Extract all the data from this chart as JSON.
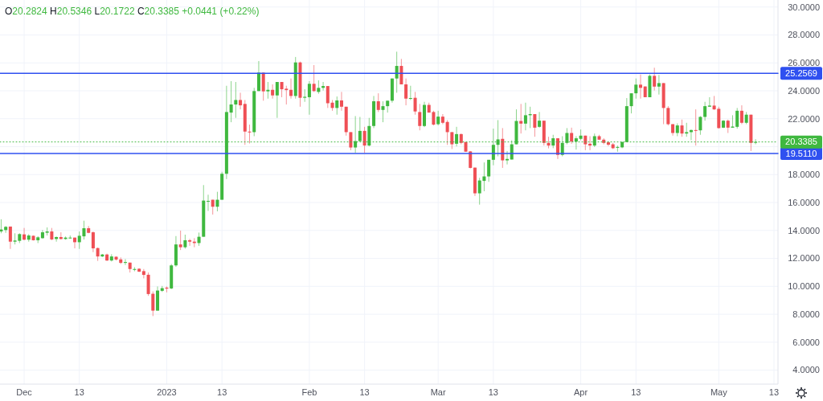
{
  "chart_data": {
    "type": "candlestick",
    "annotations": [
      "O20.2824 H20.5346 L20.1722 C20.3385 +0.0441 (+0.22%)"
    ],
    "x": [
      "2022-11-26",
      "2022-11-27",
      "2022-11-28",
      "2022-11-29",
      "2022-11-30",
      "2022-12-01",
      "2022-12-02",
      "2022-12-03",
      "2022-12-04",
      "2022-12-05",
      "2022-12-06",
      "2022-12-07",
      "2022-12-08",
      "2022-12-09",
      "2022-12-10",
      "2022-12-11",
      "2022-12-12",
      "2022-12-13",
      "2022-12-14",
      "2022-12-15",
      "2022-12-16",
      "2022-12-17",
      "2022-12-18",
      "2022-12-19",
      "2022-12-20",
      "2022-12-21",
      "2022-12-22",
      "2022-12-23",
      "2022-12-24",
      "2022-12-25",
      "2022-12-26",
      "2022-12-27",
      "2022-12-28",
      "2022-12-29",
      "2022-12-30",
      "2022-12-31",
      "2023-01-01",
      "2023-01-02",
      "2023-01-03",
      "2023-01-04",
      "2023-01-05",
      "2023-01-06",
      "2023-01-07",
      "2023-01-08",
      "2023-01-09",
      "2023-01-10",
      "2023-01-11",
      "2023-01-12",
      "2023-01-13",
      "2023-01-14",
      "2023-01-15",
      "2023-01-16",
      "2023-01-17",
      "2023-01-18",
      "2023-01-19",
      "2023-01-20",
      "2023-01-21",
      "2023-01-22",
      "2023-01-23",
      "2023-01-24",
      "2023-01-25",
      "2023-01-26",
      "2023-01-27",
      "2023-01-28",
      "2023-01-29",
      "2023-01-30",
      "2023-01-31",
      "2023-02-01",
      "2023-02-02",
      "2023-02-03",
      "2023-02-04",
      "2023-02-05",
      "2023-02-06",
      "2023-02-07",
      "2023-02-08",
      "2023-02-09",
      "2023-02-10",
      "2023-02-11",
      "2023-02-12",
      "2023-02-13",
      "2023-02-14",
      "2023-02-15",
      "2023-02-16",
      "2023-02-17",
      "2023-02-18",
      "2023-02-19",
      "2023-02-20",
      "2023-02-21",
      "2023-02-22",
      "2023-02-23",
      "2023-02-24",
      "2023-02-25",
      "2023-02-26",
      "2023-02-27",
      "2023-02-28",
      "2023-03-01",
      "2023-03-02",
      "2023-03-03",
      "2023-03-04",
      "2023-03-05",
      "2023-03-06",
      "2023-03-07",
      "2023-03-08",
      "2023-03-09",
      "2023-03-10",
      "2023-03-11",
      "2023-03-12",
      "2023-03-13",
      "2023-03-14",
      "2023-03-15",
      "2023-03-16",
      "2023-03-17",
      "2023-03-18",
      "2023-03-19",
      "2023-03-20",
      "2023-03-21",
      "2023-03-22",
      "2023-03-23",
      "2023-03-24",
      "2023-03-25",
      "2023-03-26",
      "2023-03-27",
      "2023-03-28",
      "2023-03-29",
      "2023-03-30",
      "2023-03-31",
      "2023-04-01",
      "2023-04-02",
      "2023-04-03",
      "2023-04-04",
      "2023-04-05",
      "2023-04-06",
      "2023-04-07",
      "2023-04-08",
      "2023-04-09",
      "2023-04-10",
      "2023-04-11",
      "2023-04-12",
      "2023-04-13",
      "2023-04-14",
      "2023-04-15",
      "2023-04-16",
      "2023-04-17",
      "2023-04-18",
      "2023-04-19",
      "2023-04-20",
      "2023-04-21",
      "2023-04-22",
      "2023-04-23",
      "2023-04-24",
      "2023-04-25",
      "2023-04-26",
      "2023-04-27",
      "2023-04-28",
      "2023-04-29",
      "2023-04-30",
      "2023-05-01",
      "2023-05-02",
      "2023-05-03",
      "2023-05-04",
      "2023-05-05",
      "2023-05-06",
      "2023-05-07",
      "2023-05-08",
      "2023-05-09"
    ],
    "ohlc": [
      [
        13.93,
        14.8,
        13.8,
        14.07
      ],
      [
        14.03,
        14.32,
        13.83,
        14.26
      ],
      [
        14.28,
        14.28,
        12.68,
        13.2
      ],
      [
        13.2,
        13.8,
        13.0,
        13.28
      ],
      [
        13.26,
        13.8,
        13.1,
        13.74
      ],
      [
        13.72,
        14.18,
        13.3,
        13.34
      ],
      [
        13.34,
        13.74,
        13.2,
        13.64
      ],
      [
        13.62,
        13.64,
        13.28,
        13.3
      ],
      [
        13.3,
        13.59,
        13.1,
        13.51
      ],
      [
        13.45,
        14.03,
        13.41,
        13.87
      ],
      [
        13.84,
        14.22,
        13.64,
        13.93
      ],
      [
        13.93,
        14.18,
        13.3,
        13.36
      ],
      [
        13.39,
        13.57,
        13.2,
        13.53
      ],
      [
        13.53,
        13.87,
        13.35,
        13.39
      ],
      [
        13.39,
        13.57,
        13.34,
        13.49
      ],
      [
        13.45,
        13.64,
        13.41,
        13.49
      ],
      [
        13.49,
        13.49,
        12.72,
        13.16
      ],
      [
        13.16,
        13.93,
        12.68,
        13.62
      ],
      [
        13.58,
        14.7,
        13.35,
        14.16
      ],
      [
        14.16,
        14.32,
        13.8,
        13.83
      ],
      [
        13.87,
        13.93,
        12.45,
        12.72
      ],
      [
        12.74,
        12.78,
        11.82,
        12.14
      ],
      [
        12.14,
        12.32,
        12.1,
        12.28
      ],
      [
        12.28,
        12.34,
        11.82,
        11.85
      ],
      [
        11.85,
        12.3,
        11.78,
        12.14
      ],
      [
        12.12,
        12.14,
        11.85,
        11.92
      ],
      [
        11.93,
        12.07,
        11.6,
        11.68
      ],
      [
        11.68,
        11.95,
        11.53,
        11.74
      ],
      [
        11.7,
        11.7,
        10.99,
        11.24
      ],
      [
        11.18,
        11.37,
        11.08,
        11.24
      ],
      [
        11.26,
        11.3,
        11.03,
        11.05
      ],
      [
        11.09,
        11.24,
        10.57,
        10.82
      ],
      [
        10.83,
        10.99,
        9.32,
        9.45
      ],
      [
        9.47,
        9.64,
        7.87,
        8.26
      ],
      [
        8.26,
        9.99,
        8.26,
        9.7
      ],
      [
        9.68,
        10.03,
        9.6,
        9.87
      ],
      [
        9.91,
        9.99,
        9.57,
        9.84
      ],
      [
        9.85,
        11.6,
        9.8,
        11.5
      ],
      [
        11.5,
        13.6,
        11.4,
        13.0
      ],
      [
        13.0,
        13.99,
        12.6,
        12.8
      ],
      [
        12.8,
        13.7,
        12.7,
        13.3
      ],
      [
        13.3,
        13.4,
        12.9,
        13.2
      ],
      [
        13.2,
        13.45,
        12.8,
        13.1
      ],
      [
        13.1,
        13.85,
        12.9,
        13.55
      ],
      [
        13.55,
        17.25,
        13.55,
        16.14
      ],
      [
        16.1,
        16.56,
        15.4,
        16.12
      ],
      [
        16.2,
        16.2,
        15.14,
        15.7
      ],
      [
        15.7,
        16.77,
        15.37,
        16.2
      ],
      [
        16.2,
        18.2,
        16.2,
        18.06
      ],
      [
        18.06,
        24.36,
        17.68,
        22.48
      ],
      [
        22.44,
        24.69,
        21.75,
        23.02
      ],
      [
        23.02,
        24.63,
        22.06,
        23.34
      ],
      [
        23.34,
        23.86,
        22.67,
        22.96
      ],
      [
        23.06,
        23.34,
        20.13,
        21.08
      ],
      [
        21.08,
        21.58,
        20.23,
        21.02
      ],
      [
        21.04,
        24.21,
        20.75,
        23.98
      ],
      [
        23.98,
        26.13,
        23.98,
        25.3
      ],
      [
        25.3,
        25.3,
        23.29,
        23.96
      ],
      [
        23.96,
        24.63,
        23.44,
        24.07
      ],
      [
        24.07,
        24.46,
        23.44,
        23.67
      ],
      [
        23.67,
        24.63,
        22.06,
        24.63
      ],
      [
        24.63,
        24.63,
        23.54,
        24.11
      ],
      [
        24.15,
        24.36,
        23.02,
        24.05
      ],
      [
        24.07,
        24.88,
        23.44,
        23.63
      ],
      [
        23.63,
        26.42,
        23.44,
        26.03
      ],
      [
        26.03,
        26.09,
        22.86,
        23.5
      ],
      [
        23.5,
        24.11,
        23.21,
        23.57
      ],
      [
        23.54,
        24.69,
        22.29,
        24.5
      ],
      [
        24.5,
        25.84,
        23.92,
        23.98
      ],
      [
        23.92,
        24.75,
        23.79,
        24.21
      ],
      [
        24.21,
        24.63,
        24.02,
        24.34
      ],
      [
        24.34,
        24.34,
        22.77,
        23.11
      ],
      [
        23.15,
        23.34,
        22.57,
        22.77
      ],
      [
        22.77,
        23.59,
        22.29,
        23.31
      ],
      [
        23.31,
        23.92,
        22.57,
        22.86
      ],
      [
        22.86,
        22.86,
        20.79,
        21.04
      ],
      [
        21.04,
        21.04,
        19.75,
        19.94
      ],
      [
        19.94,
        22.19,
        19.56,
        20.4
      ],
      [
        20.4,
        22.13,
        20.33,
        21.13
      ],
      [
        21.13,
        21.42,
        19.56,
        20.08
      ],
      [
        20.08,
        22.06,
        20.02,
        21.48
      ],
      [
        21.48,
        23.63,
        21.33,
        23.25
      ],
      [
        23.25,
        23.82,
        22.48,
        22.63
      ],
      [
        22.63,
        23.25,
        21.75,
        22.9
      ],
      [
        22.9,
        23.29,
        22.44,
        23.29
      ],
      [
        23.29,
        24.88,
        23.15,
        24.88
      ],
      [
        24.88,
        26.8,
        23.86,
        25.78
      ],
      [
        25.78,
        26.28,
        24.46,
        24.46
      ],
      [
        24.46,
        24.88,
        22.96,
        23.44
      ],
      [
        23.44,
        24.36,
        23.34,
        23.48
      ],
      [
        23.5,
        23.92,
        22.29,
        22.52
      ],
      [
        22.48,
        23.06,
        21.17,
        21.48
      ],
      [
        21.48,
        23.21,
        21.4,
        22.99
      ],
      [
        22.99,
        23.15,
        22.44,
        22.44
      ],
      [
        22.48,
        22.57,
        21.52,
        21.58
      ],
      [
        21.61,
        22.57,
        21.52,
        22.15
      ],
      [
        22.15,
        22.33,
        21.61,
        21.71
      ],
      [
        21.77,
        21.9,
        20.13,
        21.04
      ],
      [
        21.04,
        21.04,
        19.83,
        20.17
      ],
      [
        20.21,
        21.42,
        20.02,
        20.9
      ],
      [
        20.9,
        20.94,
        20.17,
        20.27
      ],
      [
        20.33,
        20.33,
        19.64,
        19.64
      ],
      [
        19.66,
        19.69,
        18.44,
        18.48
      ],
      [
        18.5,
        18.5,
        16.47,
        16.66
      ],
      [
        16.66,
        17.77,
        15.85,
        17.58
      ],
      [
        17.55,
        18.87,
        16.81,
        17.87
      ],
      [
        17.87,
        19.06,
        17.48,
        19.06
      ],
      [
        19.06,
        21.29,
        18.67,
        20.13
      ],
      [
        20.13,
        21.9,
        19.31,
        20.52
      ],
      [
        20.56,
        21.33,
        18.48,
        19.02
      ],
      [
        19.02,
        19.69,
        18.73,
        19.12
      ],
      [
        19.08,
        20.46,
        19.08,
        20.17
      ],
      [
        20.17,
        22.67,
        20.17,
        21.84
      ],
      [
        21.84,
        23.06,
        20.94,
        21.65
      ],
      [
        21.65,
        23.15,
        21.17,
        22.25
      ],
      [
        22.25,
        22.86,
        21.33,
        22.33
      ],
      [
        22.33,
        22.33,
        20.71,
        21.36
      ],
      [
        21.42,
        22.48,
        21.36,
        21.86
      ],
      [
        21.86,
        21.86,
        20.08,
        20.27
      ],
      [
        20.27,
        20.71,
        19.88,
        20.08
      ],
      [
        20.08,
        20.85,
        19.89,
        20.6
      ],
      [
        20.6,
        20.6,
        19.12,
        19.41
      ],
      [
        19.41,
        20.75,
        19.31,
        20.27
      ],
      [
        20.27,
        21.33,
        20.17,
        20.98
      ],
      [
        20.98,
        21.36,
        20.21,
        20.37
      ],
      [
        20.37,
        20.75,
        19.79,
        20.6
      ],
      [
        20.56,
        21.23,
        20.46,
        20.79
      ],
      [
        20.79,
        20.79,
        19.75,
        20.17
      ],
      [
        20.21,
        20.75,
        19.75,
        20.08
      ],
      [
        20.08,
        20.94,
        19.98,
        20.75
      ],
      [
        20.75,
        20.85,
        20.5,
        20.5
      ],
      [
        20.5,
        20.6,
        20.17,
        20.27
      ],
      [
        20.31,
        20.4,
        20.04,
        20.14
      ],
      [
        20.17,
        20.27,
        19.83,
        19.89
      ],
      [
        19.92,
        20.08,
        19.64,
        19.98
      ],
      [
        19.95,
        20.37,
        19.89,
        20.33
      ],
      [
        20.33,
        23.48,
        20.33,
        22.9
      ],
      [
        22.9,
        23.82,
        22.38,
        23.82
      ],
      [
        23.82,
        24.88,
        23.44,
        24.44
      ],
      [
        24.44,
        25.17,
        23.44,
        24.21
      ],
      [
        24.31,
        24.31,
        23.54,
        23.54
      ],
      [
        23.54,
        25.17,
        23.54,
        25.07
      ],
      [
        25.07,
        25.65,
        24.02,
        24.3
      ],
      [
        24.3,
        25.13,
        23.73,
        24.55
      ],
      [
        24.55,
        24.55,
        21.61,
        22.77
      ],
      [
        22.77,
        22.9,
        21.52,
        21.61
      ],
      [
        21.61,
        21.61,
        20.79,
        20.98
      ],
      [
        20.98,
        21.67,
        20.75,
        21.52
      ],
      [
        21.52,
        21.94,
        20.71,
        20.94
      ],
      [
        20.94,
        21.71,
        20.71,
        21.04
      ],
      [
        21.04,
        21.23,
        20.46,
        21.19
      ],
      [
        21.19,
        22.67,
        20.08,
        21.13
      ],
      [
        21.17,
        22.19,
        20.85,
        22.13
      ],
      [
        22.13,
        23.21,
        21.86,
        22.9
      ],
      [
        22.86,
        23.54,
        22.86,
        22.94
      ],
      [
        22.94,
        23.63,
        22.63,
        22.67
      ],
      [
        22.71,
        22.86,
        21.29,
        21.33
      ],
      [
        21.36,
        21.9,
        21.33,
        21.86
      ],
      [
        21.86,
        21.94,
        20.98,
        21.36
      ],
      [
        21.36,
        22.25,
        21.36,
        21.44
      ],
      [
        21.42,
        22.77,
        21.29,
        22.57
      ],
      [
        22.57,
        22.96,
        21.61,
        21.71
      ],
      [
        21.71,
        22.48,
        21.61,
        22.29
      ],
      [
        22.29,
        22.29,
        19.69,
        20.27
      ],
      [
        20.2824,
        20.5346,
        20.1722,
        20.3385
      ]
    ],
    "colors": [
      "#3fb83f",
      "#3fb83f",
      "#ef4f55",
      "#3fb83f",
      "#3fb83f",
      "#ef4f55",
      "#3fb83f",
      "#ef4f55",
      "#3fb83f",
      "#3fb83f",
      "#3fb83f",
      "#ef4f55",
      "#3fb83f",
      "#ef4f55",
      "#3fb83f",
      "#3fb83f",
      "#ef4f55",
      "#3fb83f",
      "#3fb83f",
      "#ef4f55",
      "#ef4f55",
      "#ef4f55",
      "#3fb83f",
      "#ef4f55",
      "#3fb83f",
      "#ef4f55",
      "#ef4f55",
      "#3fb83f",
      "#ef4f55",
      "#3fb83f",
      "#ef4f55",
      "#ef4f55",
      "#ef4f55",
      "#ef4f55",
      "#3fb83f",
      "#3fb83f",
      "#ef4f55",
      "#3fb83f",
      "#3fb83f",
      "#ef4f55",
      "#3fb83f",
      "#ef4f55",
      "#ef4f55",
      "#3fb83f",
      "#3fb83f",
      "#3fb83f",
      "#ef4f55",
      "#3fb83f",
      "#3fb83f",
      "#3fb83f",
      "#3fb83f",
      "#3fb83f",
      "#ef4f55",
      "#ef4f55",
      "#ef4f55",
      "#3fb83f",
      "#3fb83f",
      "#ef4f55",
      "#3fb83f",
      "#ef4f55",
      "#3fb83f",
      "#ef4f55",
      "#ef4f55",
      "#ef4f55",
      "#3fb83f",
      "#ef4f55",
      "#3fb83f",
      "#3fb83f",
      "#ef4f55",
      "#3fb83f",
      "#3fb83f",
      "#ef4f55",
      "#ef4f55",
      "#3fb83f",
      "#ef4f55",
      "#ef4f55",
      "#ef4f55",
      "#3fb83f",
      "#3fb83f",
      "#ef4f55",
      "#3fb83f",
      "#3fb83f",
      "#ef4f55",
      "#3fb83f",
      "#3fb83f",
      "#3fb83f",
      "#3fb83f",
      "#ef4f55",
      "#ef4f55",
      "#3fb83f",
      "#ef4f55",
      "#ef4f55",
      "#3fb83f",
      "#ef4f55",
      "#ef4f55",
      "#3fb83f",
      "#ef4f55",
      "#ef4f55",
      "#ef4f55",
      "#3fb83f",
      "#ef4f55",
      "#ef4f55",
      "#ef4f55",
      "#ef4f55",
      "#3fb83f",
      "#3fb83f",
      "#3fb83f",
      "#3fb83f",
      "#3fb83f",
      "#ef4f55",
      "#3fb83f",
      "#3fb83f",
      "#3fb83f",
      "#ef4f55",
      "#3fb83f",
      "#3fb83f",
      "#ef4f55",
      "#3fb83f",
      "#ef4f55",
      "#ef4f55",
      "#3fb83f",
      "#ef4f55",
      "#3fb83f",
      "#3fb83f",
      "#ef4f55",
      "#3fb83f",
      "#3fb83f",
      "#ef4f55",
      "#ef4f55",
      "#3fb83f",
      "#ef4f55",
      "#ef4f55",
      "#ef4f55",
      "#ef4f55",
      "#3fb83f",
      "#3fb83f",
      "#3fb83f",
      "#3fb83f",
      "#3fb83f",
      "#ef4f55",
      "#ef4f55",
      "#3fb83f",
      "#ef4f55",
      "#3fb83f",
      "#ef4f55",
      "#ef4f55",
      "#ef4f55",
      "#3fb83f",
      "#ef4f55",
      "#3fb83f",
      "#3fb83f",
      "#ef4f55",
      "#3fb83f",
      "#3fb83f",
      "#3fb83f",
      "#ef4f55",
      "#ef4f55",
      "#3fb83f",
      "#ef4f55",
      "#3fb83f",
      "#3fb83f",
      "#ef4f55",
      "#3fb83f",
      "#ef4f55",
      "#3fb83f"
    ],
    "xlim": [
      "2022-11-25T18:00",
      "2023-05-13T21:00"
    ],
    "xticks": [
      {
        "value": "2022-12-01",
        "label": "Dec"
      },
      {
        "value": "2022-12-13",
        "label": "13"
      },
      {
        "value": "2023-01-01",
        "label": "2023"
      },
      {
        "value": "2023-01-13",
        "label": "13"
      },
      {
        "value": "2023-02-01",
        "label": "Feb"
      },
      {
        "value": "2023-02-13",
        "label": "13"
      },
      {
        "value": "2023-03-01",
        "label": "Mar"
      },
      {
        "value": "2023-03-13",
        "label": "13"
      },
      {
        "value": "2023-04-01",
        "label": "Apr"
      },
      {
        "value": "2023-04-13",
        "label": "13"
      },
      {
        "value": "2023-05-01",
        "label": "May"
      },
      {
        "value": "2023-05-13",
        "label": "13"
      }
    ],
    "ylim": [
      3,
      30.5
    ],
    "yticks": [
      {
        "value": 4,
        "label": "4.0000"
      },
      {
        "value": 6,
        "label": "6.0000"
      },
      {
        "value": 8,
        "label": "8.0000"
      },
      {
        "value": 10,
        "label": "10.0000"
      },
      {
        "value": 12,
        "label": "12.0000"
      },
      {
        "value": 14,
        "label": "14.0000"
      },
      {
        "value": 16,
        "label": "16.0000"
      },
      {
        "value": 18,
        "label": "18.0000"
      },
      {
        "value": 20,
        "label": null
      },
      {
        "value": 22,
        "label": "22.0000"
      },
      {
        "value": 24,
        "label": "24.0000"
      },
      {
        "value": 26,
        "label": "26.0000"
      },
      {
        "value": 28,
        "label": "28.0000"
      },
      {
        "value": 30,
        "label": "30.0000"
      }
    ],
    "ref_lines": [
      {
        "axis": "y",
        "value": 25.2569,
        "label": "25.2569",
        "color": "#2f50f0",
        "line_style": "solid"
      },
      {
        "axis": "y",
        "value": 19.511,
        "label": "19.5110",
        "color": "#2f50f0",
        "line_style": "solid"
      },
      {
        "axis": "y",
        "value": 20.3385,
        "label": "20.3385",
        "color": "#3fb83f",
        "line_style": "dotted"
      }
    ],
    "grid": true
  }
}
